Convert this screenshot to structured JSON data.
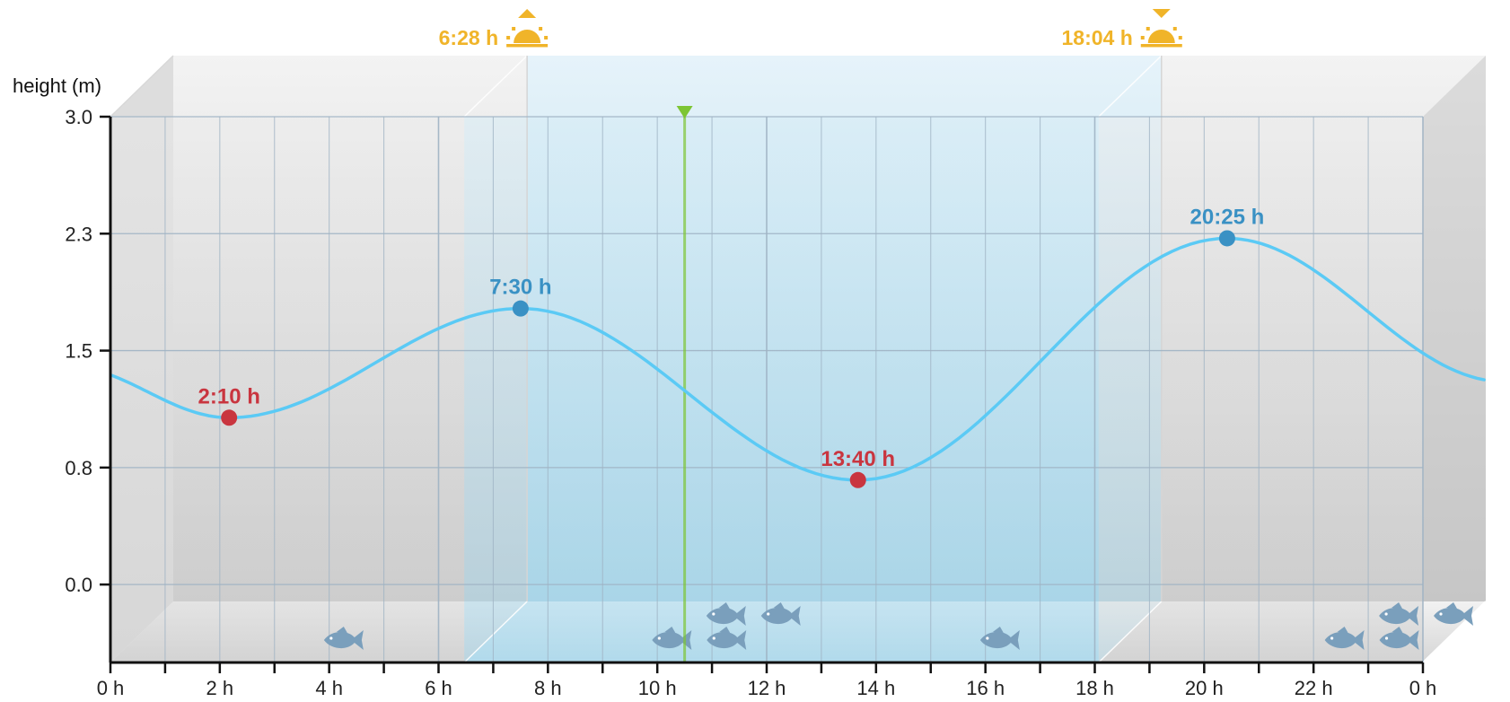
{
  "chart_data": {
    "type": "line",
    "ylabel": "height (m)",
    "xlabel": "",
    "xlim": [
      0,
      24
    ],
    "ylim": [
      -0.5,
      3.0
    ],
    "x_ticks": [
      {
        "value": 0,
        "label": "0 h"
      },
      {
        "value": 2,
        "label": "2 h"
      },
      {
        "value": 4,
        "label": "4 h"
      },
      {
        "value": 6,
        "label": "6 h"
      },
      {
        "value": 8,
        "label": "8 h"
      },
      {
        "value": 10,
        "label": "10 h"
      },
      {
        "value": 12,
        "label": "12 h"
      },
      {
        "value": 14,
        "label": "14 h"
      },
      {
        "value": 16,
        "label": "16 h"
      },
      {
        "value": 18,
        "label": "18 h"
      },
      {
        "value": 20,
        "label": "20 h"
      },
      {
        "value": 22,
        "label": "22 h"
      },
      {
        "value": 24,
        "label": "0 h"
      }
    ],
    "y_ticks": [
      {
        "value": 0.0,
        "label": "0.0"
      },
      {
        "value": 0.75,
        "label": "0.8"
      },
      {
        "value": 1.5,
        "label": "1.5"
      },
      {
        "value": 2.25,
        "label": "2.3"
      },
      {
        "value": 3.0,
        "label": "3.0"
      }
    ],
    "grid": true,
    "series": [
      {
        "color": "#5bcaf5",
        "x": [
          -0.8,
          2.17,
          7.5,
          13.67,
          20.42,
          25.5
        ],
        "y": [
          1.4,
          1.07,
          1.77,
          0.67,
          2.22,
          1.3
        ]
      }
    ],
    "extremes": [
      {
        "kind": "low",
        "time": 2.17,
        "height": 1.07,
        "label": "2:10 h",
        "color": "#c9353f"
      },
      {
        "kind": "high",
        "time": 7.5,
        "height": 1.77,
        "label": "7:30 h",
        "color": "#3a91c4"
      },
      {
        "kind": "low",
        "time": 13.67,
        "height": 0.67,
        "label": "13:40 h",
        "color": "#c9353f"
      },
      {
        "kind": "high",
        "time": 20.42,
        "height": 2.22,
        "label": "20:25 h",
        "color": "#3a91c4"
      }
    ],
    "sunrise": {
      "time": 6.47,
      "label": "6:28 h",
      "icon": "sunrise-icon"
    },
    "sunset": {
      "time": 18.07,
      "label": "18:04 h",
      "icon": "sunset-icon"
    },
    "current_time": {
      "time": 10.5,
      "color": "#7dc534"
    },
    "fish_activity": {
      "icon": "fish-icon",
      "color": "#7a9fbc",
      "fish": [
        {
          "time": 4.2,
          "row": "front"
        },
        {
          "time": 10.2,
          "row": "front"
        },
        {
          "time": 11.2,
          "row": "front"
        },
        {
          "time": 10.7,
          "row": "back"
        },
        {
          "time": 11.7,
          "row": "back"
        },
        {
          "time": 16.2,
          "row": "front"
        },
        {
          "time": 22.5,
          "row": "front"
        },
        {
          "time": 23.5,
          "row": "front"
        },
        {
          "time": 23.0,
          "row": "back"
        },
        {
          "time": 24.0,
          "row": "back"
        }
      ]
    },
    "colors": {
      "night_fill": "#dcdcdc",
      "day_fill": "#bfe0ee",
      "grid": "#9fb3c4",
      "axis": "#111111",
      "sun": "#f0b429"
    }
  }
}
